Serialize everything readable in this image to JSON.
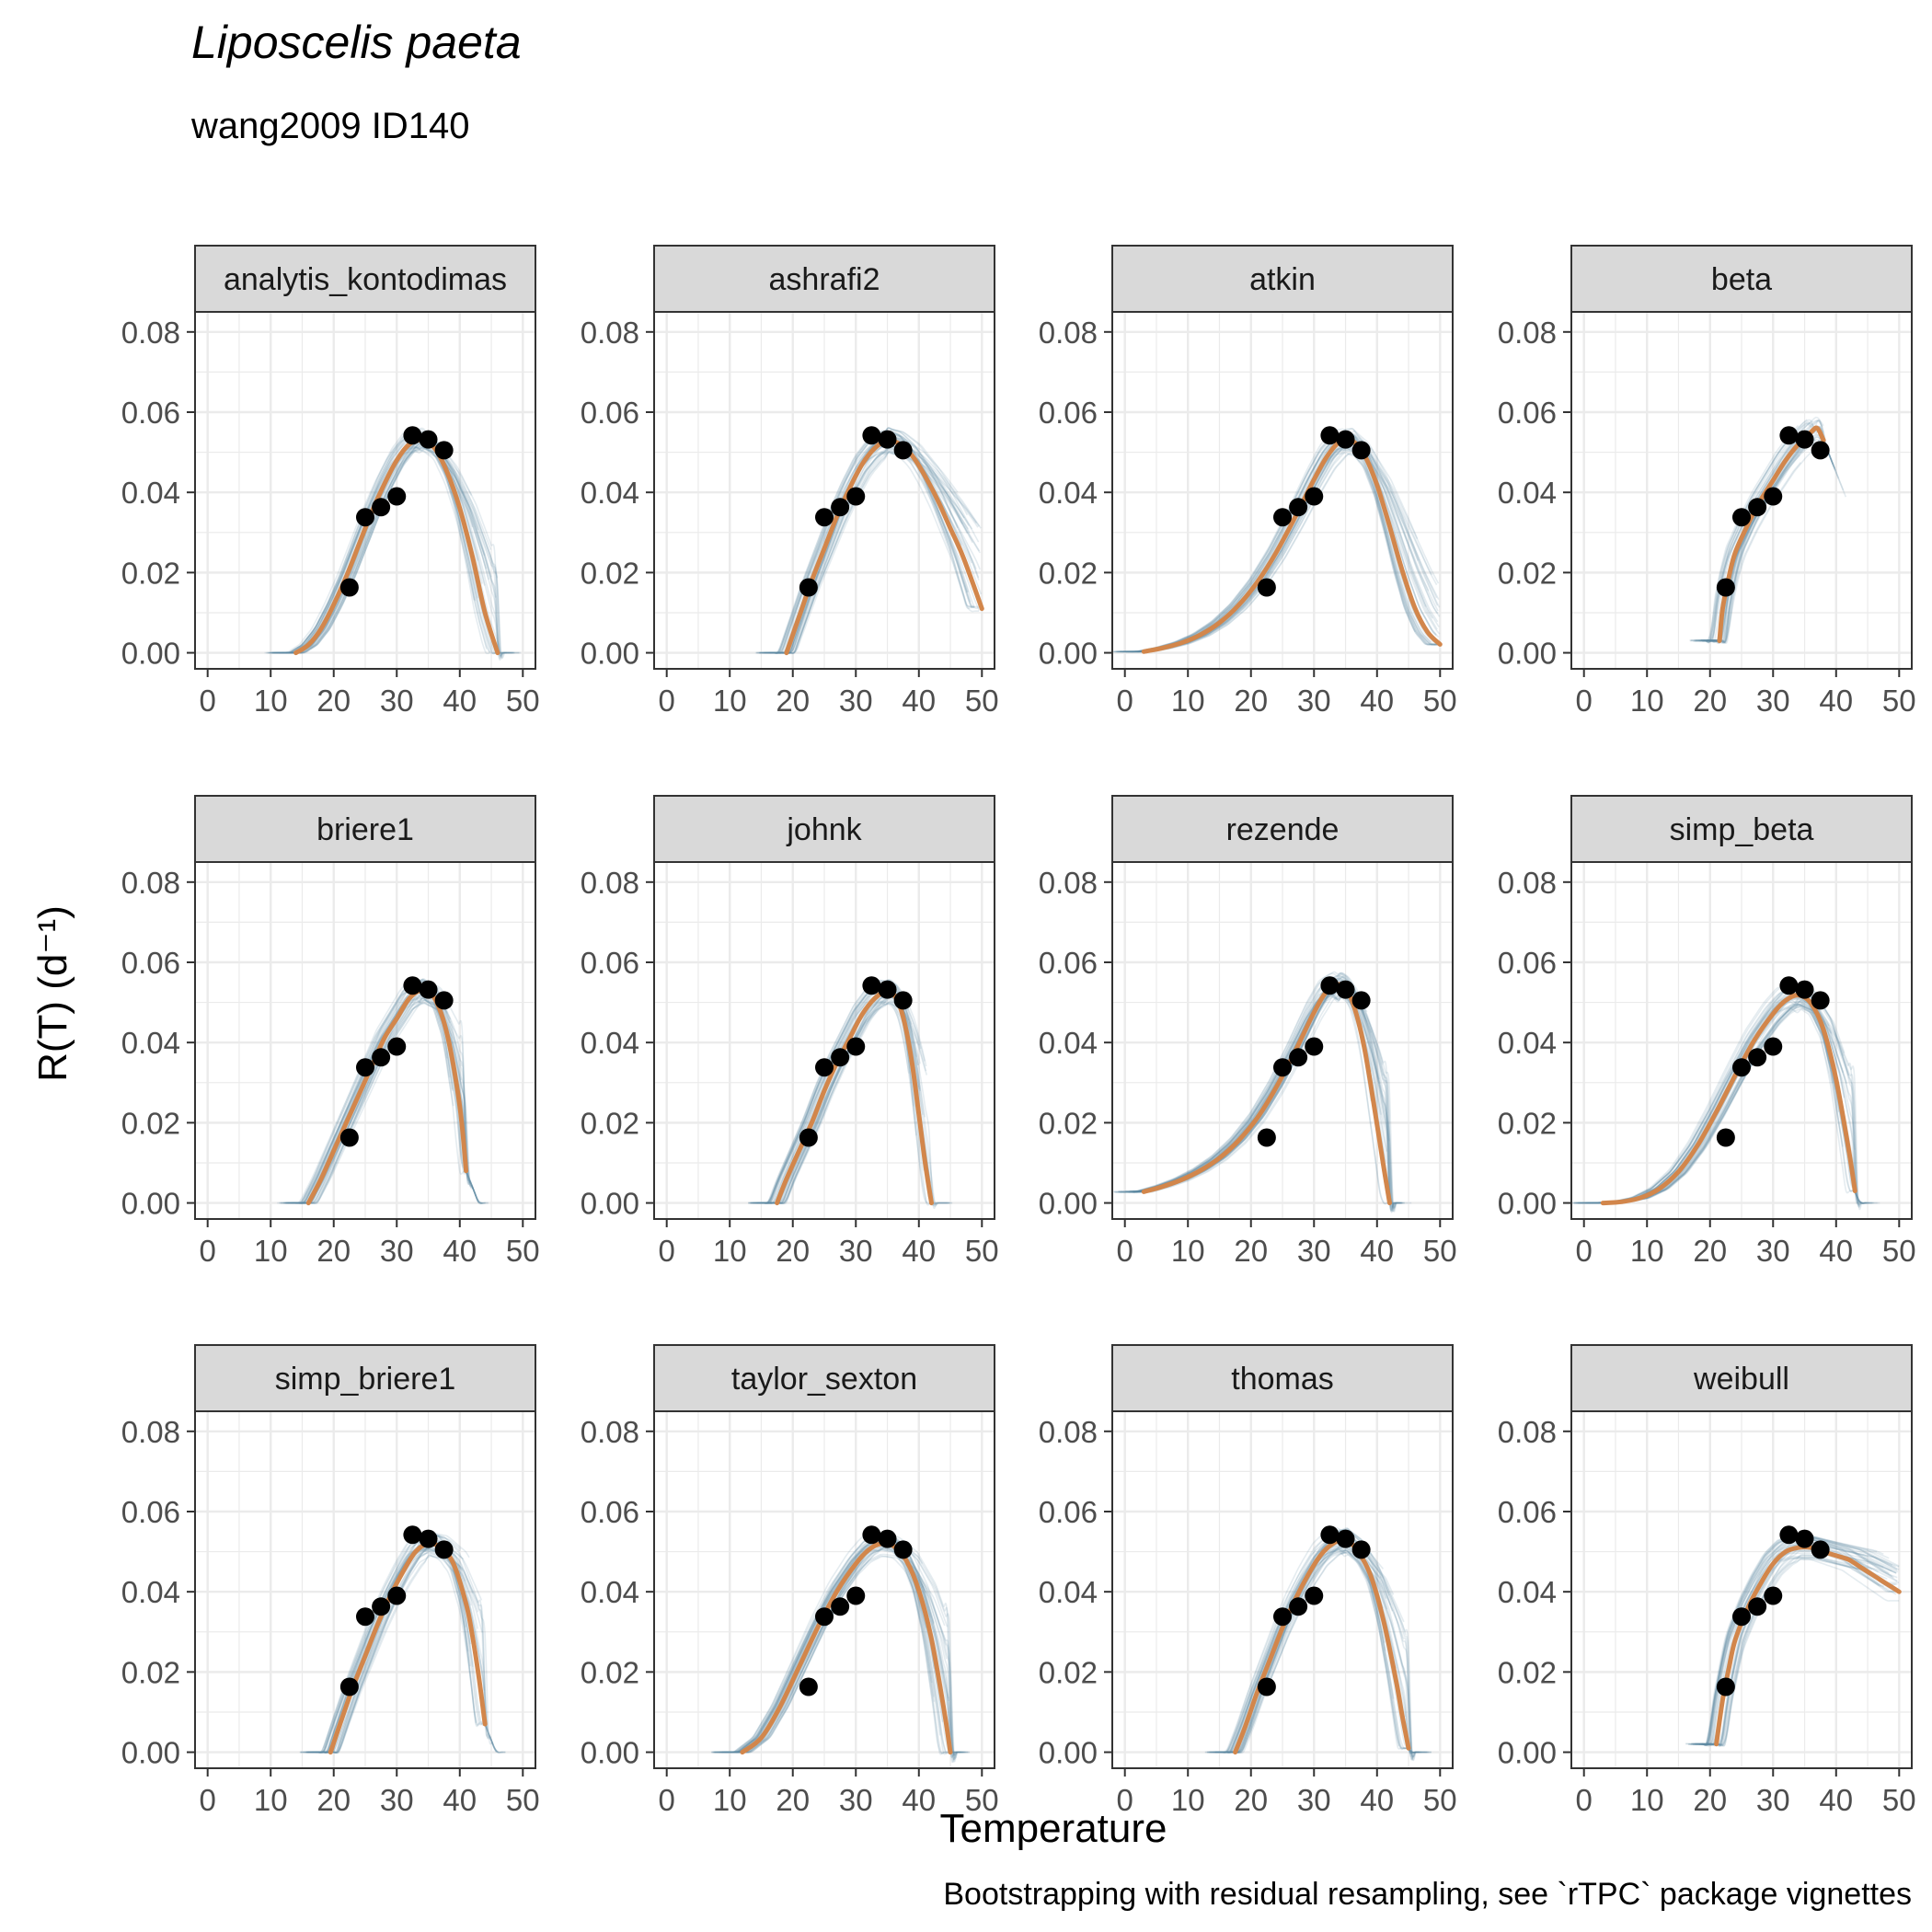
{
  "chart_data": {
    "type": "line",
    "title": "Liposcelis paeta",
    "subtitle": "wang2009 ID140",
    "xlabel": "Temperature",
    "ylabel": "R(T) (d⁻¹)",
    "caption": "Bootstrapping with residual resampling, see `rTPC` package vignettes",
    "xlim": [
      -2,
      52
    ],
    "ylim": [
      -0.004,
      0.085
    ],
    "x_ticks": [
      0,
      10,
      20,
      30,
      40,
      50
    ],
    "y_ticks": [
      0.0,
      0.02,
      0.04,
      0.06,
      0.08
    ],
    "y_tick_labels": [
      "0.00",
      "0.02",
      "0.04",
      "0.06",
      "0.08"
    ],
    "grid": true,
    "colors": {
      "fit": "#D2864B",
      "bootstrap": "#5B8BA0",
      "points": "#000000",
      "strip_bg": "#D9D9D9",
      "grid": "#EBEBEB"
    },
    "observations": {
      "temperature": [
        22.5,
        25,
        27.5,
        30,
        32.5,
        35,
        37.5
      ],
      "rate": [
        0.0163,
        0.0338,
        0.0363,
        0.039,
        0.0542,
        0.0532,
        0.0505
      ]
    },
    "panels": [
      {
        "model": "analytis_kontodimas",
        "fit": {
          "x": [
            14,
            16,
            18,
            20,
            22,
            24,
            26,
            28,
            30,
            32,
            34,
            36,
            38,
            40,
            42,
            44,
            46
          ],
          "y": [
            0.0,
            0.002,
            0.006,
            0.012,
            0.019,
            0.027,
            0.035,
            0.042,
            0.048,
            0.052,
            0.053,
            0.051,
            0.045,
            0.036,
            0.024,
            0.01,
            0.0
          ]
        }
      },
      {
        "model": "ashrafi2",
        "fit": {
          "x": [
            19,
            21,
            23,
            25,
            27,
            29,
            31,
            33,
            35,
            37,
            39,
            41,
            43,
            45,
            47,
            50
          ],
          "y": [
            0.0,
            0.009,
            0.018,
            0.026,
            0.034,
            0.041,
            0.047,
            0.051,
            0.053,
            0.052,
            0.049,
            0.044,
            0.038,
            0.031,
            0.024,
            0.011
          ]
        }
      },
      {
        "model": "atkin",
        "fit": {
          "x": [
            3,
            6,
            9,
            12,
            15,
            18,
            21,
            24,
            27,
            30,
            32,
            34,
            36,
            38,
            40,
            42,
            44,
            46,
            48,
            50
          ],
          "y": [
            0.0003,
            0.0012,
            0.0025,
            0.0045,
            0.0075,
            0.0118,
            0.0176,
            0.025,
            0.0338,
            0.0432,
            0.0488,
            0.0525,
            0.0529,
            0.0493,
            0.0418,
            0.0315,
            0.0205,
            0.0112,
            0.0052,
            0.0021
          ]
        }
      },
      {
        "model": "beta",
        "fit": {
          "x": [
            21.5,
            22,
            23,
            24,
            26,
            28,
            30,
            32,
            34,
            36,
            37,
            38
          ],
          "y": [
            0.003,
            0.011,
            0.019,
            0.025,
            0.032,
            0.038,
            0.043,
            0.048,
            0.052,
            0.055,
            0.056,
            0.053
          ]
        }
      },
      {
        "model": "briere1",
        "fit": {
          "x": [
            16,
            18,
            20,
            22,
            24,
            26,
            28,
            30,
            32,
            34,
            36,
            38,
            40,
            41
          ],
          "y": [
            0.0,
            0.006,
            0.013,
            0.02,
            0.027,
            0.034,
            0.041,
            0.046,
            0.051,
            0.053,
            0.051,
            0.042,
            0.024,
            0.008
          ]
        }
      },
      {
        "model": "johnk",
        "fit": {
          "x": [
            17.5,
            19,
            21,
            23,
            25,
            27,
            29,
            31,
            33,
            35,
            36,
            37,
            38,
            39,
            40,
            41,
            42
          ],
          "y": [
            0.0,
            0.006,
            0.013,
            0.02,
            0.028,
            0.035,
            0.041,
            0.047,
            0.051,
            0.053,
            0.052,
            0.049,
            0.043,
            0.034,
            0.022,
            0.01,
            0.0
          ]
        }
      },
      {
        "model": "rezende",
        "fit": {
          "x": [
            3,
            6,
            9,
            12,
            15,
            18,
            21,
            24,
            27,
            30,
            32,
            34,
            35,
            36,
            37,
            38,
            39,
            40,
            41,
            42
          ],
          "y": [
            0.0028,
            0.0041,
            0.0058,
            0.0081,
            0.0112,
            0.0155,
            0.0212,
            0.0288,
            0.0378,
            0.0475,
            0.0527,
            0.0545,
            0.0535,
            0.0505,
            0.0455,
            0.0385,
            0.0295,
            0.0195,
            0.0095,
            0.0
          ]
        }
      },
      {
        "model": "simp_beta",
        "fit": {
          "x": [
            3,
            6,
            9,
            12,
            15,
            18,
            21,
            24,
            27,
            30,
            32,
            34,
            36,
            38,
            40,
            42,
            43
          ],
          "y": [
            0.0,
            0.0003,
            0.0013,
            0.0036,
            0.0078,
            0.0143,
            0.0227,
            0.0318,
            0.0405,
            0.0472,
            0.0505,
            0.0518,
            0.0498,
            0.0432,
            0.0308,
            0.0132,
            0.003
          ]
        }
      },
      {
        "model": "simp_briere1",
        "fit": {
          "x": [
            19.5,
            21,
            23,
            25,
            27,
            29,
            31,
            33,
            35,
            37,
            39,
            41,
            42,
            43,
            44
          ],
          "y": [
            0.0,
            0.007,
            0.016,
            0.024,
            0.032,
            0.039,
            0.045,
            0.05,
            0.052,
            0.051,
            0.047,
            0.037,
            0.029,
            0.019,
            0.007
          ]
        }
      },
      {
        "model": "taylor_sexton",
        "fit": {
          "x": [
            12,
            15,
            18,
            21,
            24,
            27,
            30,
            32,
            34,
            36,
            38,
            40,
            42,
            44,
            45
          ],
          "y": [
            0.0,
            0.0036,
            0.0114,
            0.0213,
            0.0312,
            0.0401,
            0.047,
            0.0504,
            0.052,
            0.0514,
            0.0478,
            0.0403,
            0.0282,
            0.0104,
            0.0
          ]
        }
      },
      {
        "model": "thomas",
        "fit": {
          "x": [
            17.5,
            19,
            21,
            23,
            25,
            27,
            29,
            31,
            33,
            35,
            37,
            39,
            41,
            43,
            44,
            45
          ],
          "y": [
            0.0,
            0.006,
            0.015,
            0.023,
            0.031,
            0.038,
            0.044,
            0.049,
            0.052,
            0.053,
            0.05,
            0.044,
            0.033,
            0.018,
            0.009,
            0.001
          ]
        }
      },
      {
        "model": "weibull",
        "fit": {
          "x": [
            21,
            22,
            23,
            24,
            26,
            28,
            30,
            32,
            34,
            36,
            38,
            40,
            42,
            44,
            46,
            48,
            50
          ],
          "y": [
            0.002,
            0.013,
            0.021,
            0.028,
            0.036,
            0.042,
            0.047,
            0.05,
            0.051,
            0.051,
            0.05,
            0.049,
            0.048,
            0.046,
            0.044,
            0.042,
            0.04
          ]
        }
      }
    ]
  }
}
